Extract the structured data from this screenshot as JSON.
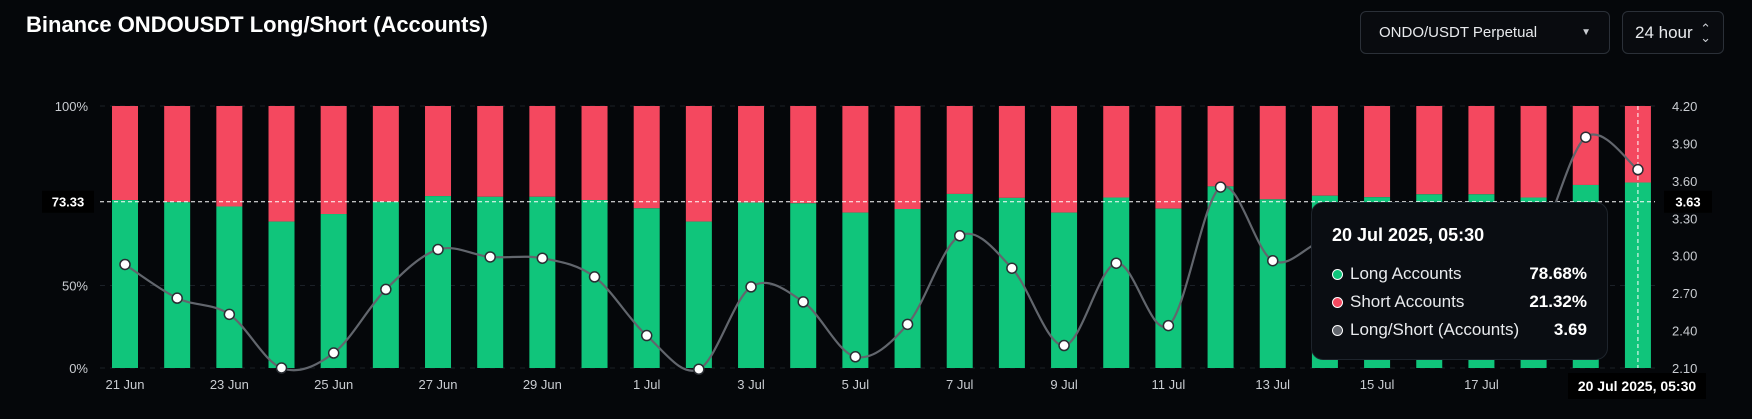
{
  "header": {
    "title": "Binance ONDOUSDT Long/Short (Accounts)",
    "market_select": "ONDO/USDT Perpetual",
    "period_select": "24 hour"
  },
  "colors": {
    "long": "#10c57b",
    "short": "#f4485f",
    "ratio_line": "#62666d",
    "background": "#05070a"
  },
  "icons": {
    "market_caret": "chevron-down-icon",
    "period_updown": "up-down-chevron-icon"
  },
  "crosshair": {
    "left_value": "73.33",
    "right_value": "3.63",
    "x_label": "20 Jul 2025, 05:30"
  },
  "tooltip": {
    "title": "20 Jul 2025, 05:30",
    "rows": [
      {
        "label": "Long Accounts",
        "value": "78.68%"
      },
      {
        "label": "Short Accounts",
        "value": "21.32%"
      },
      {
        "label": "Long/Short (Accounts)",
        "value": "3.69"
      }
    ]
  },
  "chart_data": {
    "type": "bar",
    "title": "Binance ONDOUSDT Long/Short (Accounts)",
    "x": [
      "2025-06-21",
      "2025-06-22",
      "2025-06-23",
      "2025-06-24",
      "2025-06-25",
      "2025-06-26",
      "2025-06-27",
      "2025-06-28",
      "2025-06-29",
      "2025-06-30",
      "2025-07-01",
      "2025-07-02",
      "2025-07-03",
      "2025-07-04",
      "2025-07-05",
      "2025-07-06",
      "2025-07-07",
      "2025-07-08",
      "2025-07-09",
      "2025-07-10",
      "2025-07-11",
      "2025-07-12",
      "2025-07-13",
      "2025-07-14",
      "2025-07-15",
      "2025-07-16",
      "2025-07-17",
      "2025-07-18",
      "2025-07-19",
      "2025-07-20"
    ],
    "x_ticks": [
      "21 Jun",
      "23 Jun",
      "25 Jun",
      "27 Jun",
      "29 Jun",
      "1 Jul",
      "3 Jul",
      "5 Jul",
      "7 Jul",
      "9 Jul",
      "11 Jul",
      "13 Jul",
      "15 Jul",
      "17 Jul"
    ],
    "left_axis": {
      "ticks": [
        "100%",
        "50%",
        "0%"
      ],
      "range": [
        0,
        100
      ],
      "offset": 27
    },
    "right_axis": {
      "ticks": [
        "4.20",
        "3.90",
        "3.60",
        "3.30",
        "3.00",
        "2.70",
        "2.40",
        "2.10"
      ],
      "range": [
        2.1,
        4.2
      ]
    },
    "series": [
      {
        "name": "Long Accounts",
        "axis": "left",
        "values": [
          73.8,
          73.2,
          72.0,
          67.8,
          69.9,
          73.3,
          74.9,
          74.7,
          74.7,
          73.8,
          71.5,
          67.8,
          73.1,
          72.9,
          70.3,
          71.3,
          75.5,
          74.4,
          70.3,
          74.5,
          71.4,
          77.6,
          74.0,
          75.0,
          74.6,
          75.4,
          75.4,
          74.5,
          78.0,
          78.68
        ]
      },
      {
        "name": "Short Accounts",
        "axis": "left",
        "values": [
          26.2,
          26.8,
          28.0,
          32.2,
          30.1,
          26.7,
          25.1,
          25.3,
          25.3,
          26.2,
          28.5,
          32.2,
          26.9,
          27.1,
          29.7,
          28.7,
          24.5,
          25.6,
          29.7,
          25.5,
          28.6,
          22.4,
          26.0,
          25.0,
          25.4,
          24.6,
          24.6,
          25.5,
          22.0,
          21.32
        ]
      },
      {
        "name": "Long/Short (Accounts)",
        "axis": "right",
        "values": [
          2.93,
          2.66,
          2.53,
          2.1,
          2.22,
          2.73,
          3.05,
          2.99,
          2.98,
          2.83,
          2.36,
          2.09,
          2.75,
          2.63,
          2.19,
          2.45,
          3.16,
          2.9,
          2.28,
          2.94,
          2.44,
          3.55,
          2.96,
          3.12,
          3.05,
          3.12,
          3.12,
          3.05,
          3.95,
          3.69
        ]
      }
    ]
  }
}
